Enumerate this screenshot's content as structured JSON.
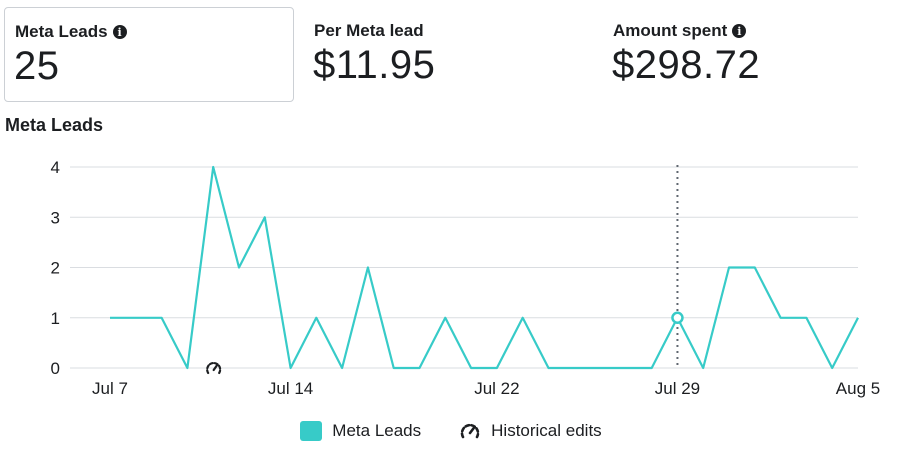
{
  "metrics": [
    {
      "label": "Meta Leads",
      "value": "25",
      "info_icon": "info-icon"
    },
    {
      "label": "Per Meta lead",
      "value": "$11.95"
    },
    {
      "label": "Amount spent",
      "value": "$298.72",
      "info_icon": "info-icon"
    }
  ],
  "colors": {
    "series": "#37cbc8",
    "grid": "#dadde1",
    "marker_line": "#606770",
    "text": "#1c1e21"
  },
  "legend": {
    "series_label": "Meta Leads",
    "edits_label": "Historical edits",
    "edits_icon": "gauge-icon"
  },
  "chart_data": {
    "type": "line",
    "title": "Meta Leads",
    "x": [
      "Jul 7",
      "Jul 8",
      "Jul 9",
      "Jul 10",
      "Jul 11",
      "Jul 12",
      "Jul 13",
      "Jul 14",
      "Jul 15",
      "Jul 16",
      "Jul 17",
      "Jul 18",
      "Jul 19",
      "Jul 20",
      "Jul 21",
      "Jul 22",
      "Jul 23",
      "Jul 24",
      "Jul 25",
      "Jul 26",
      "Jul 27",
      "Jul 28",
      "Jul 29",
      "Jul 30",
      "Jul 31",
      "Aug 1",
      "Aug 2",
      "Aug 3",
      "Aug 4",
      "Aug 5"
    ],
    "x_ticks": [
      "Jul 7",
      "Jul 14",
      "Jul 22",
      "Jul 29",
      "Aug 5"
    ],
    "y_ticks": [
      0,
      1,
      2,
      3,
      4
    ],
    "ylim": [
      0,
      4
    ],
    "grid": true,
    "series": [
      {
        "name": "Meta Leads",
        "values": [
          1,
          1,
          1,
          0,
          4,
          2,
          3,
          0,
          1,
          0,
          2,
          0,
          0,
          1,
          0,
          0,
          1,
          0,
          0,
          0,
          0,
          0,
          1,
          0,
          2,
          2,
          1,
          1,
          0,
          1
        ]
      }
    ],
    "highlight": {
      "x": "Jul 29",
      "value": 1
    },
    "historical_edit": {
      "x": "Jul 11"
    }
  }
}
